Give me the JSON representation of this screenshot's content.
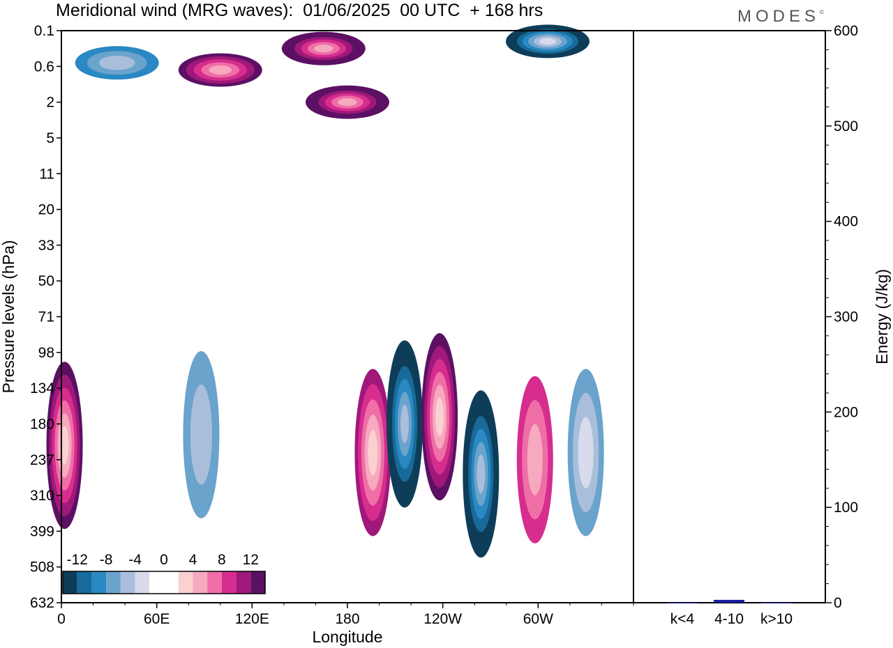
{
  "header": {
    "title": "Meridional wind (MRG waves):  01/06/2025  00 UTC  + 168 hrs",
    "brand": "MODES",
    "brand_mark": "©"
  },
  "chart_data": [
    {
      "type": "heatmap",
      "title": "Meridional wind (MRG waves):  01/06/2025  00 UTC  + 168 hrs",
      "xlabel": "Longitude",
      "ylabel": "Pressure levels (hPa)",
      "x_ticks": [
        "0",
        "60E",
        "120E",
        "180",
        "120W",
        "60W"
      ],
      "x_tick_degrees": [
        0,
        60,
        120,
        180,
        240,
        300
      ],
      "xlim": [
        0,
        360
      ],
      "y_ticks": [
        "0.1",
        "0.6",
        "2",
        "5",
        "11",
        "20",
        "33",
        "50",
        "71",
        "98",
        "134",
        "180",
        "237",
        "310",
        "399",
        "508",
        "632"
      ],
      "colorbar": {
        "labels": [
          "-12",
          "-8",
          "-4",
          "0",
          "4",
          "8",
          "12"
        ],
        "colors": [
          "#0e3d5a",
          "#176b9b",
          "#2a88c2",
          "#6aa3cc",
          "#a9bedb",
          "#d8dbeb",
          "#ffffff",
          "#ffffff",
          "#fad0d0",
          "#f6a9bf",
          "#ef6ea6",
          "#d62d8e",
          "#a0197a",
          "#5c1064"
        ]
      },
      "features": [
        {
          "lon": 2,
          "level_index": 11.6,
          "value": 11,
          "sign": "positive"
        },
        {
          "lon": 35,
          "level_index": 0.9,
          "value": -6,
          "sign": "negative"
        },
        {
          "lon": 88,
          "level_index": 11.3,
          "value": -4,
          "sign": "negative"
        },
        {
          "lon": 100,
          "level_index": 1.1,
          "value": 10,
          "sign": "positive"
        },
        {
          "lon": 165,
          "level_index": 0.5,
          "value": 12,
          "sign": "positive"
        },
        {
          "lon": 180,
          "level_index": 2.0,
          "value": 12,
          "sign": "positive"
        },
        {
          "lon": 196,
          "level_index": 11.8,
          "value": 9,
          "sign": "positive"
        },
        {
          "lon": 216,
          "level_index": 11.0,
          "value": -12,
          "sign": "negative"
        },
        {
          "lon": 238,
          "level_index": 10.8,
          "value": 11,
          "sign": "positive"
        },
        {
          "lon": 264,
          "level_index": 12.4,
          "value": -12,
          "sign": "negative"
        },
        {
          "lon": 298,
          "level_index": 12.0,
          "value": 6,
          "sign": "positive"
        },
        {
          "lon": 306,
          "level_index": 0.3,
          "value": -13,
          "sign": "negative"
        },
        {
          "lon": 330,
          "level_index": 11.8,
          "value": -5,
          "sign": "negative"
        }
      ]
    },
    {
      "type": "bar",
      "ylabel": "Energy (J/kg)",
      "categories": [
        "k<4",
        "4-10",
        "k>10"
      ],
      "values": [
        0,
        3,
        0
      ],
      "ylim": [
        0,
        600
      ],
      "y_ticks": [
        "0",
        "100",
        "200",
        "300",
        "400",
        "500",
        "600"
      ],
      "bar_color": "#1a1aa0"
    }
  ]
}
